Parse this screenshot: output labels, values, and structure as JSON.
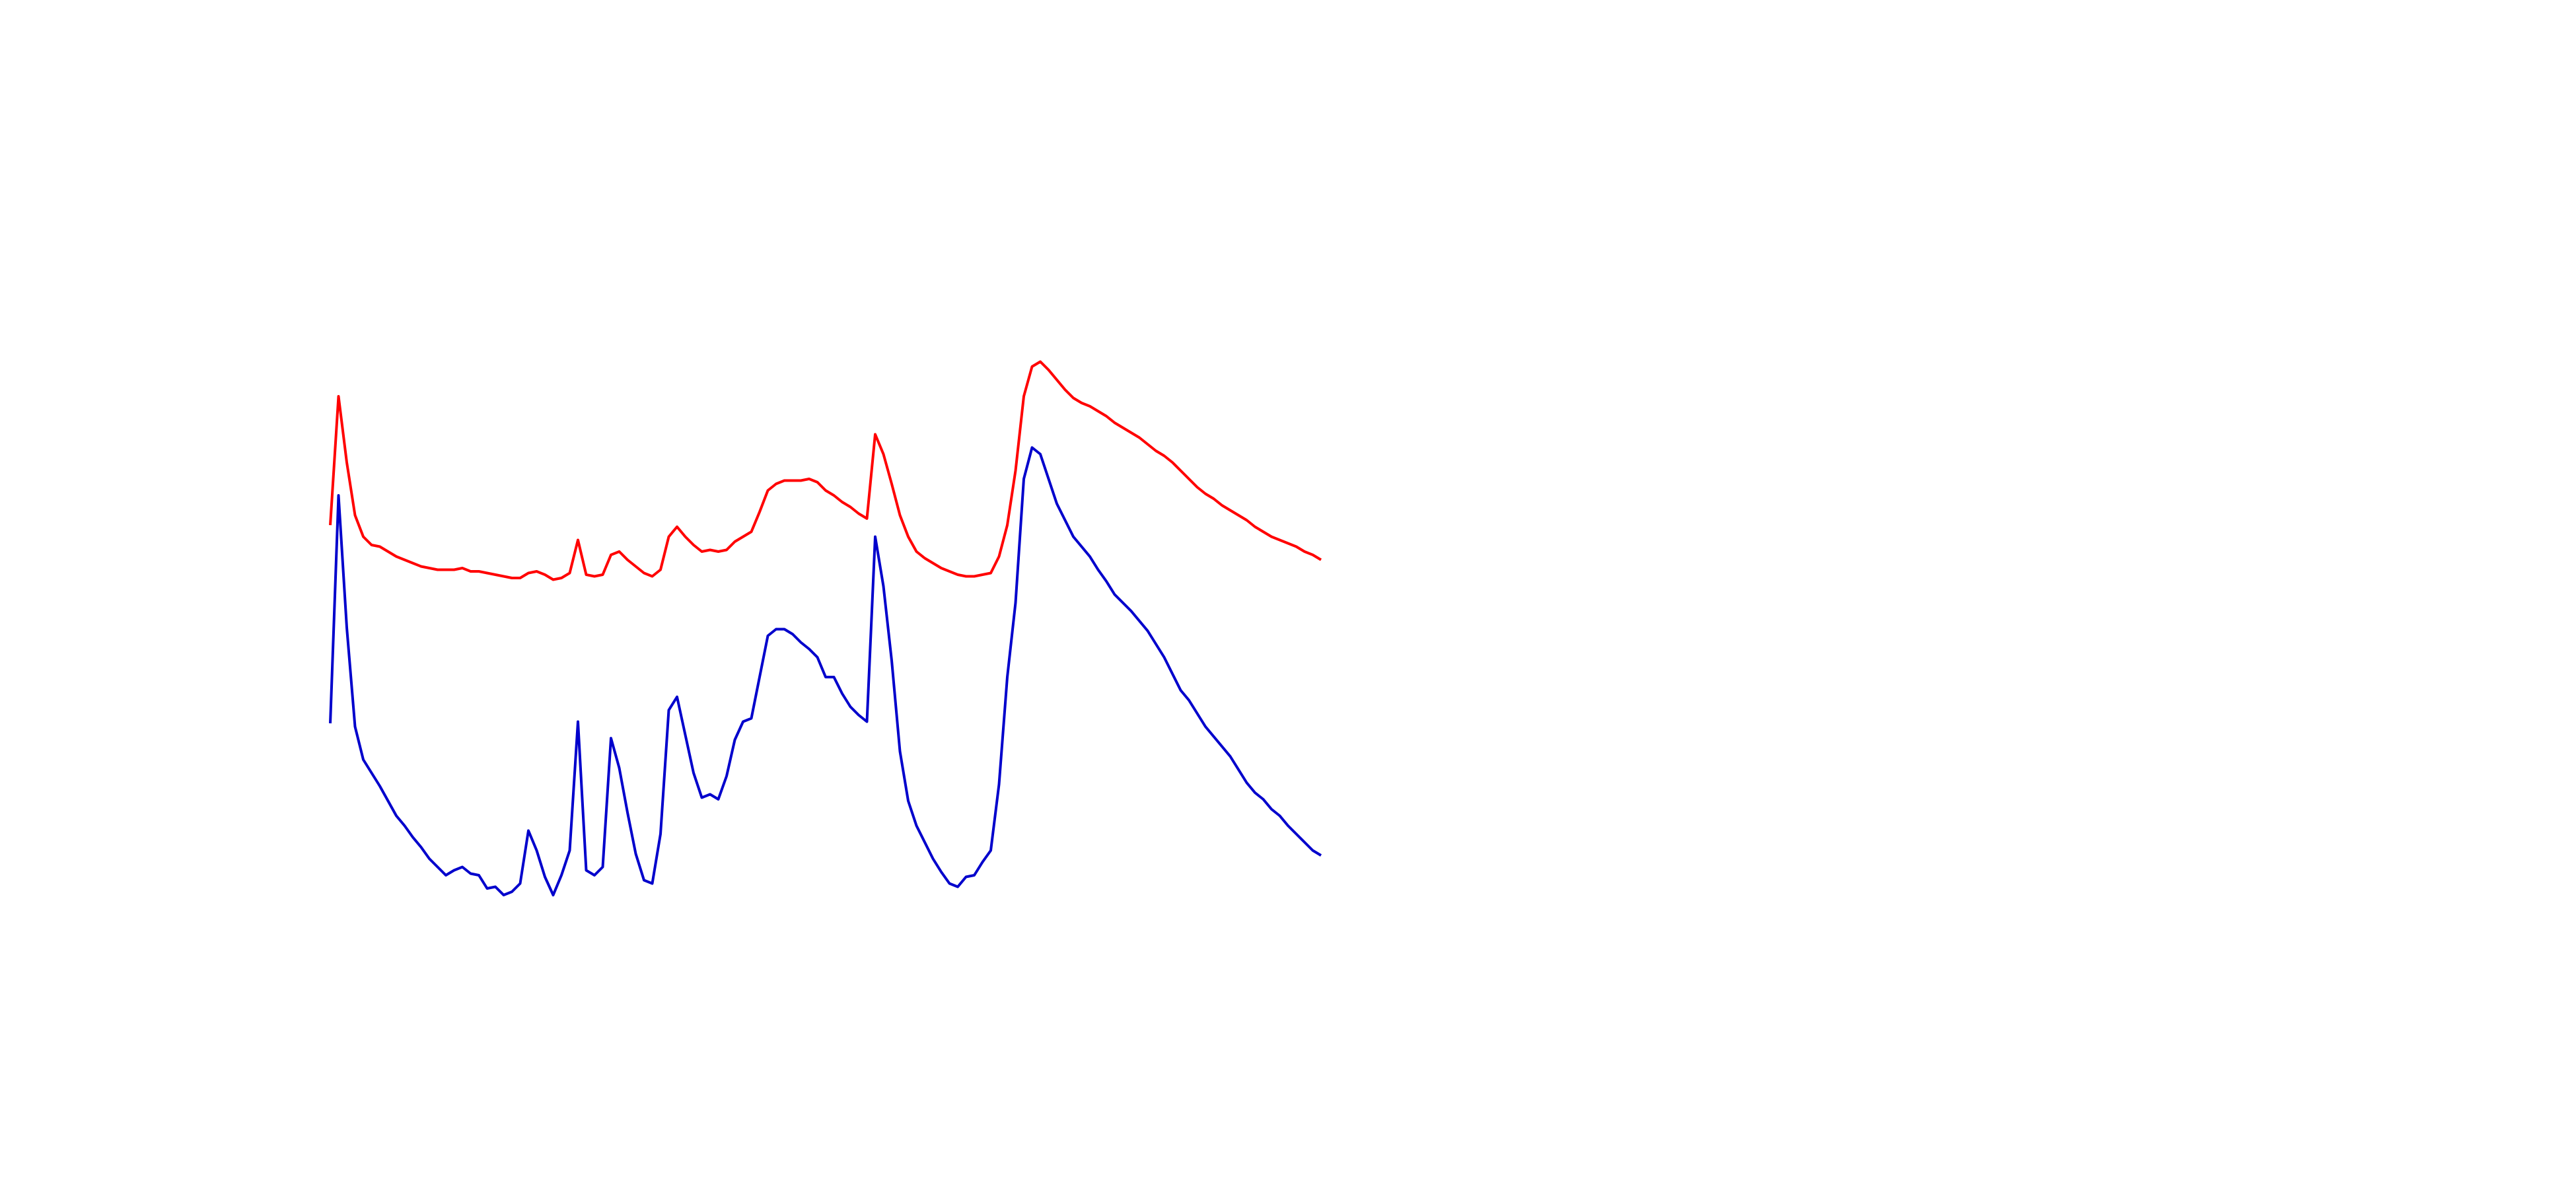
{
  "chart_data": {
    "type": "line",
    "ylim": [
      0,
      720
    ],
    "series": [
      {
        "color": "#ff0000",
        "values": [
          402,
          480,
          440,
          408,
          395,
          390,
          389,
          386,
          383,
          381,
          379,
          377,
          376,
          375,
          375,
          375,
          376,
          374,
          374,
          373,
          372,
          371,
          370,
          370,
          373,
          374,
          372,
          369,
          370,
          373,
          393,
          372,
          371,
          372,
          384,
          386,
          381,
          377,
          373,
          371,
          375,
          395,
          401,
          395,
          390,
          386,
          387,
          386,
          387,
          392,
          395,
          398,
          410,
          423,
          427,
          429,
          429,
          429,
          430,
          428,
          423,
          420,
          416,
          413,
          409,
          406,
          457,
          445,
          427,
          408,
          395,
          386,
          382,
          379,
          376,
          374,
          372,
          371,
          371,
          372,
          373,
          383,
          402,
          435,
          480,
          498,
          501,
          496,
          490,
          484,
          479,
          476,
          474,
          471,
          468,
          464,
          461,
          458,
          455,
          451,
          447,
          444,
          440,
          435,
          430,
          425,
          421,
          418,
          414,
          411,
          408,
          405,
          401,
          398,
          395,
          393,
          391,
          389,
          386,
          384,
          381
        ]
      },
      {
        "color": "#0000cc",
        "values": [
          282,
          420,
          340,
          280,
          260,
          252,
          244,
          235,
          226,
          220,
          213,
          207,
          200,
          195,
          190,
          193,
          195,
          191,
          190,
          182,
          183,
          178,
          180,
          185,
          217,
          205,
          189,
          178,
          190,
          205,
          283,
          193,
          190,
          195,
          273,
          255,
          228,
          203,
          187,
          185,
          215,
          290,
          298,
          275,
          252,
          237,
          239,
          236,
          250,
          272,
          283,
          285,
          310,
          335,
          339,
          339,
          336,
          331,
          327,
          322,
          310,
          310,
          300,
          292,
          287,
          283,
          395,
          365,
          320,
          265,
          235,
          220,
          210,
          200,
          192,
          185,
          183,
          189,
          190,
          198,
          205,
          245,
          310,
          355,
          430,
          449,
          445,
          430,
          415,
          405,
          395,
          389,
          383,
          375,
          368,
          360,
          355,
          350,
          344,
          338,
          330,
          322,
          312,
          302,
          296,
          288,
          280,
          274,
          268,
          262,
          254,
          246,
          240,
          236,
          230,
          226,
          220,
          215,
          210,
          205,
          202
        ]
      }
    ]
  }
}
